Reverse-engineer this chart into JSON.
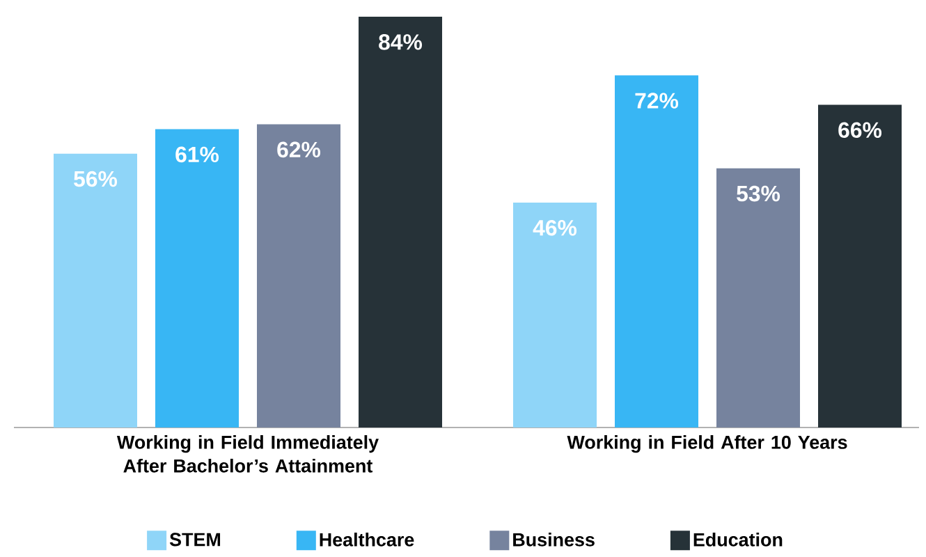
{
  "chart_data": {
    "type": "bar",
    "categories": [
      "Working in Field Immediately After Bachelor’s Attainment",
      "Working in Field After 10 Years"
    ],
    "series": [
      {
        "name": "STEM",
        "color": "#8fd5f8",
        "values": [
          56,
          46
        ],
        "value_labels": [
          "56%",
          "46%"
        ]
      },
      {
        "name": "Healthcare",
        "color": "#38b6f4",
        "values": [
          61,
          72
        ],
        "value_labels": [
          "61%",
          "72%"
        ]
      },
      {
        "name": "Business",
        "color": "#76839e",
        "values": [
          62,
          53
        ],
        "value_labels": [
          "62%",
          "53%"
        ]
      },
      {
        "name": "Education",
        "color": "#263238",
        "values": [
          84,
          66
        ],
        "value_labels": [
          "84%",
          "66%"
        ]
      }
    ],
    "legend": "bottom"
  }
}
